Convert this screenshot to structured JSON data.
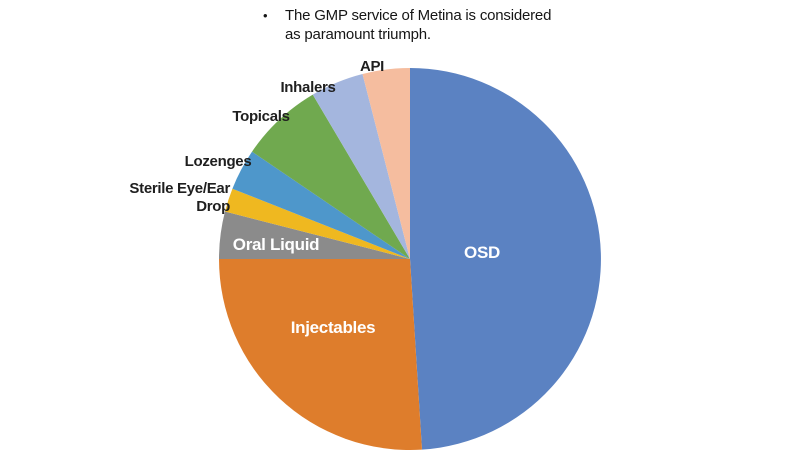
{
  "note": {
    "bullet_char": "•",
    "lines": [
      "The GMP service of Metina is considered",
      "as paramount triumph."
    ]
  },
  "chart_data": {
    "type": "pie",
    "title": "",
    "direction": "clockwise",
    "start_angle_deg": 0,
    "values_estimated": true,
    "background": "#ffffff",
    "inside_label_color": "#ffffff",
    "outside_label_color": "#1f1f1f",
    "slices": [
      {
        "label": "OSD",
        "value": 49,
        "color": "#5B82C2",
        "label_inside": true
      },
      {
        "label": "Injectables",
        "value": 26,
        "color": "#DE7D2C",
        "label_inside": true
      },
      {
        "label": "Oral Liquid",
        "value": 4,
        "color": "#8B8B8B",
        "label_inside": true
      },
      {
        "label": "Sterile Eye/Ear Drop",
        "value": 2,
        "color": "#EFB820",
        "label_inside": false,
        "label_lines": [
          "Sterile Eye/Ear",
          "Drop"
        ]
      },
      {
        "label": "Lozenges",
        "value": 3.5,
        "color": "#4E97CB",
        "label_inside": false
      },
      {
        "label": "Topicals",
        "value": 7,
        "color": "#70A94F",
        "label_inside": false
      },
      {
        "label": "Inhalers",
        "value": 4.5,
        "color": "#A4B6DE",
        "label_inside": false
      },
      {
        "label": "API",
        "value": 4,
        "color": "#F5BD9F",
        "label_inside": false
      }
    ]
  }
}
